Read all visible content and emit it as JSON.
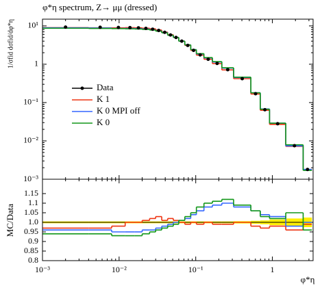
{
  "chart_data": [
    {
      "type": "histogram",
      "title": "φ*η spectrum, Z→ μμ (dressed)",
      "ylabel": "1/σfid dσfid/dφ*η",
      "log_y": true,
      "bins": [
        0.001,
        0.004,
        0.008,
        0.012,
        0.016,
        0.02,
        0.025,
        0.03,
        0.036,
        0.043,
        0.051,
        0.06,
        0.072,
        0.086,
        0.102,
        0.128,
        0.165,
        0.219,
        0.312,
        0.524,
        0.695,
        0.918,
        1.496,
        2.522,
        3.277
      ],
      "ylim": [
        0.001,
        15
      ],
      "yticks": [
        {
          "value": 0.001,
          "label": "10⁻³"
        },
        {
          "value": 0.01,
          "label": "10⁻²"
        },
        {
          "value": 0.1,
          "label": "10⁻¹"
        },
        1,
        {
          "value": 10,
          "label": "10¹"
        }
      ],
      "legend": "center left",
      "series": [
        {
          "name": "Data",
          "color": "#000000",
          "style": "points",
          "values": [
            9.3,
            9.2,
            9.1,
            9.0,
            8.9,
            8.6,
            8.2,
            7.6,
            6.8,
            5.8,
            5.0,
            4.0,
            3.1,
            2.3,
            1.75,
            1.35,
            1.05,
            0.72,
            0.42,
            0.17,
            0.065,
            0.028,
            0.0075,
            0.0018
          ]
        },
        {
          "name": "K 1",
          "color": "#ee3311",
          "style": "step",
          "values": [
            9.0,
            8.9,
            8.9,
            9.0,
            8.9,
            8.7,
            8.4,
            7.8,
            6.9,
            5.9,
            5.0,
            4.0,
            3.1,
            2.3,
            1.73,
            1.35,
            1.04,
            0.71,
            0.42,
            0.167,
            0.063,
            0.027,
            0.0072,
            0.0018
          ]
        },
        {
          "name": "K 0 MPI off",
          "color": "#3366ff",
          "style": "step",
          "values": [
            8.9,
            8.8,
            8.6,
            8.6,
            8.5,
            8.3,
            7.9,
            7.4,
            6.7,
            5.7,
            5.0,
            4.0,
            3.2,
            2.4,
            1.85,
            1.46,
            1.14,
            0.79,
            0.45,
            0.18,
            0.068,
            0.029,
            0.0074,
            0.0018
          ]
        },
        {
          "name": "K 0",
          "color": "#109618",
          "style": "step",
          "values": [
            8.7,
            8.6,
            8.5,
            8.4,
            8.3,
            8.1,
            7.8,
            7.3,
            6.6,
            5.7,
            5.0,
            4.0,
            3.2,
            2.4,
            1.89,
            1.49,
            1.17,
            0.81,
            0.46,
            0.18,
            0.067,
            0.029,
            0.0079,
            0.0017
          ]
        }
      ]
    },
    {
      "type": "histogram",
      "ylabel": "MC/Data",
      "xlabel": "φ*η",
      "log_x": true,
      "xlim": [
        0.001,
        3.4
      ],
      "xticks": [
        {
          "value": 0.001,
          "label": "10⁻³"
        },
        {
          "value": 0.01,
          "label": "10⁻²"
        },
        {
          "value": 0.1,
          "label": "10⁻¹"
        },
        1
      ],
      "ylim": [
        0.8,
        1.225
      ],
      "yticks": [
        0.8,
        0.85,
        0.9,
        0.95,
        {
          "value": 1,
          "label": "1.0"
        },
        1.05,
        1.1,
        1.15
      ],
      "reference": 1,
      "band_color": "#ffee00",
      "data_uncertainty": [
        0.005,
        0.005,
        0.005,
        0.005,
        0.005,
        0.005,
        0.005,
        0.005,
        0.005,
        0.005,
        0.005,
        0.005,
        0.005,
        0.005,
        0.005,
        0.005,
        0.005,
        0.005,
        0.006,
        0.008,
        0.01,
        0.015,
        0.02,
        0.025
      ],
      "series": [
        {
          "name": "K 1",
          "color": "#ee3311",
          "values": [
            0.97,
            0.97,
            0.98,
            1.0,
            1.0,
            1.01,
            1.02,
            1.03,
            1.01,
            1.02,
            1.01,
            1.0,
            0.99,
            1.0,
            0.99,
            1.0,
            0.99,
            0.99,
            1.0,
            0.98,
            0.97,
            0.98,
            0.96,
            0.99
          ]
        },
        {
          "name": "K 0 MPI off",
          "color": "#3366ff",
          "values": [
            0.96,
            0.96,
            0.95,
            0.95,
            0.95,
            0.96,
            0.96,
            0.97,
            0.98,
            0.99,
            1.0,
            1.01,
            1.02,
            1.04,
            1.06,
            1.08,
            1.09,
            1.1,
            1.08,
            1.06,
            1.04,
            1.03,
            0.98,
            1.0
          ]
        },
        {
          "name": "K 0",
          "color": "#109618",
          "values": [
            0.94,
            0.94,
            0.93,
            0.93,
            0.93,
            0.94,
            0.95,
            0.96,
            0.97,
            0.98,
            0.99,
            1.01,
            1.03,
            1.05,
            1.08,
            1.1,
            1.11,
            1.12,
            1.09,
            1.06,
            1.03,
            1.02,
            1.05,
            0.96
          ]
        }
      ]
    }
  ]
}
